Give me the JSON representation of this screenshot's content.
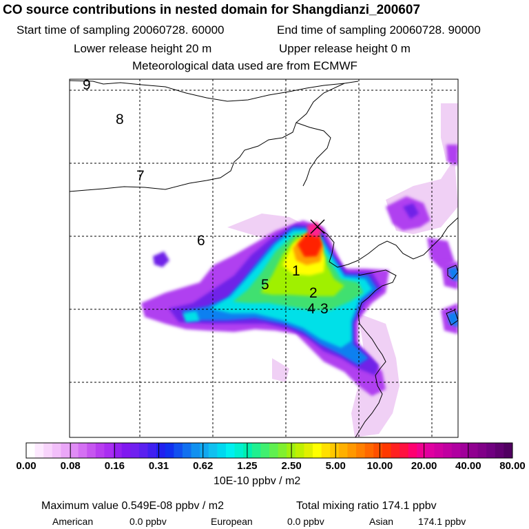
{
  "header": {
    "title": "CO  source contributions in nested domain for Shangdianzi_200607",
    "start_time": "Start time of sampling 20060728. 60000",
    "end_time": "End time of sampling 20060728. 90000",
    "lower_release": "Lower release height   20 m",
    "upper_release": "Upper release height    0 m",
    "met_data": "Meteorological data used are from ECMWF"
  },
  "map": {
    "region_labels": [
      "9",
      "8",
      "7",
      "6",
      "1",
      "2",
      "4",
      "3",
      "5"
    ],
    "receptor_marker": "x-mark-icon",
    "colors": {
      "low": "#f0d0f5",
      "magenta": "#b040f0",
      "purple": "#7020e8",
      "blue": "#1080f0",
      "cyan": "#00e0e8",
      "green": "#40e070",
      "lime": "#a0f000",
      "yellow": "#ffff00",
      "orange": "#ffa000",
      "red": "#ff2000",
      "pink": "#ff2090"
    }
  },
  "legend": {
    "tick_labels": [
      "0.00",
      "0.08",
      "0.16",
      "0.31",
      "0.62",
      "1.25",
      "2.50",
      "5.00",
      "10.00",
      "20.00",
      "40.00",
      "80.00"
    ],
    "colors": [
      "#ffffff",
      "#fde9ff",
      "#f8d4fc",
      "#f2bffa",
      "#eaa6f8",
      "#e08cf5",
      "#d470f3",
      "#c656f0",
      "#b83ef0",
      "#aa2ef2",
      "#9420f0",
      "#8018f0",
      "#7020f0",
      "#5a20f0",
      "#4020f0",
      "#2020f0",
      "#1030f0",
      "#1050f0",
      "#1070f0",
      "#1090f0",
      "#10a8f0",
      "#10c0f0",
      "#00d8f0",
      "#00f0f0",
      "#00f0d0",
      "#00f0b0",
      "#20f090",
      "#40f070",
      "#60f050",
      "#80f030",
      "#a0f010",
      "#c0f000",
      "#e0f000",
      "#ffff00",
      "#ffe000",
      "#ffc800",
      "#ffb000",
      "#ff9800",
      "#ff8000",
      "#ff6800",
      "#ff5000",
      "#ff3800",
      "#ff2020",
      "#ff1040",
      "#ff0070",
      "#f00090",
      "#e000a0",
      "#d000a0",
      "#c000a0",
      "#b000a0",
      "#a0009a",
      "#900090",
      "#800088",
      "#700080",
      "#600070",
      "#500060"
    ],
    "unit": "10E-10 ppbv / m2"
  },
  "footer": {
    "max_value": "Maximum value  0.549E-08 ppbv / m2",
    "total": "Total mixing ratio     174.1 ppbv",
    "american_label": "American",
    "american_value": "0.0 ppbv",
    "european_label": "European",
    "european_value": "0.0 ppbv",
    "asian_label": "Asian",
    "asian_value": "174.1 ppbv"
  }
}
